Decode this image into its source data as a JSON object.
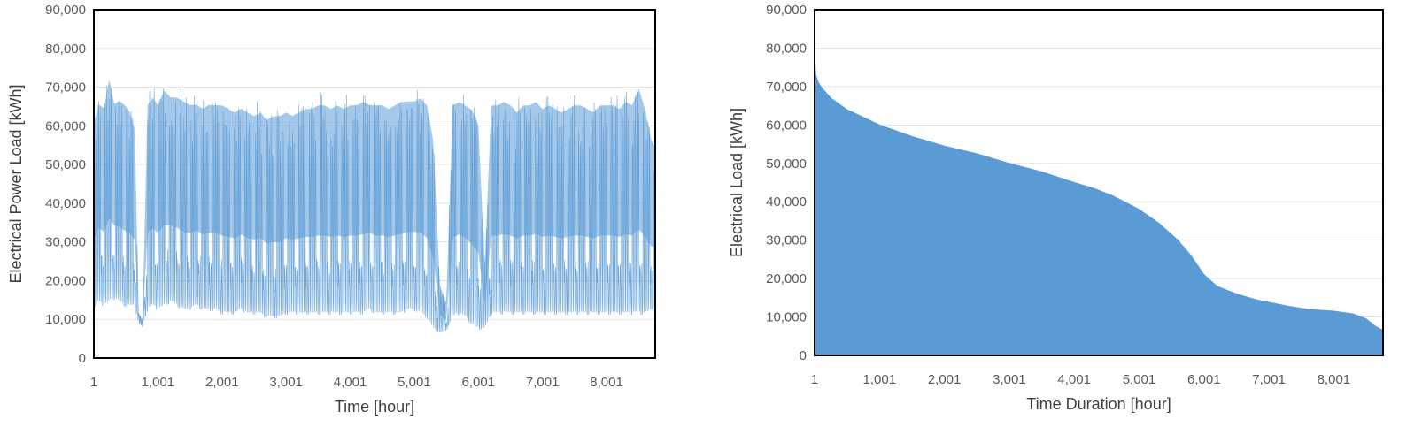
{
  "colors": {
    "series": "#5b9bd5",
    "grid": "#e3e3e3",
    "frame": "#000000",
    "text": "#595959"
  },
  "chart_data": [
    {
      "type": "line",
      "title": "",
      "xlabel": "Time [hour]",
      "ylabel": "Electrical Power Load [kWh]",
      "xlim": [
        1,
        8760
      ],
      "ylim": [
        0,
        90000
      ],
      "grid": true,
      "legend": "none",
      "x_ticks": [
        "1",
        "1,001",
        "2,001",
        "3,001",
        "4,001",
        "5,001",
        "6,001",
        "7,001",
        "8,001"
      ],
      "y_ticks": [
        "0",
        "10,000",
        "20,000",
        "30,000",
        "40,000",
        "50,000",
        "60,000",
        "70,000",
        "80,000",
        "90,000"
      ],
      "series": [
        {
          "values_note_x": "hour",
          "x": [
            1,
            80,
            160,
            240,
            320,
            400,
            480,
            560,
            640,
            700,
            760,
            840,
            920,
            1000,
            1100,
            1200,
            1300,
            1400,
            1500,
            1600,
            1700,
            1800,
            1900,
            2000,
            2100,
            2200,
            2300,
            2400,
            2500,
            2600,
            2700,
            2800,
            2900,
            3000,
            3100,
            3200,
            3300,
            3400,
            3500,
            3600,
            3700,
            3800,
            3900,
            4000,
            4100,
            4200,
            4300,
            4400,
            4500,
            4600,
            4700,
            4800,
            4900,
            5000,
            5100,
            5200,
            5300,
            5400,
            5500,
            5600,
            5700,
            5800,
            5900,
            6000,
            6100,
            6200,
            6300,
            6400,
            6500,
            6600,
            6700,
            6800,
            6900,
            7000,
            7100,
            7200,
            7300,
            7400,
            7500,
            7600,
            7700,
            7800,
            7900,
            8000,
            8100,
            8200,
            8300,
            8400,
            8500,
            8600,
            8700,
            8760
          ],
          "max": [
            65000,
            70000,
            69000,
            77000,
            70000,
            71000,
            70000,
            68000,
            63000,
            12000,
            10000,
            70000,
            72000,
            70000,
            74000,
            72000,
            72000,
            71000,
            70000,
            70000,
            69000,
            70000,
            70000,
            70000,
            69000,
            68000,
            69000,
            68000,
            67000,
            68000,
            66000,
            67000,
            67000,
            68000,
            67000,
            68000,
            69000,
            69000,
            70000,
            70000,
            69000,
            70000,
            69000,
            70000,
            70000,
            71000,
            70000,
            70000,
            70000,
            69000,
            70000,
            71000,
            71000,
            71000,
            72000,
            70000,
            60000,
            20000,
            15000,
            70000,
            71000,
            70000,
            69000,
            65000,
            25000,
            70000,
            70000,
            71000,
            70000,
            68000,
            70000,
            70000,
            71000,
            69000,
            70000,
            69000,
            68000,
            69000,
            70000,
            70000,
            69000,
            68000,
            70000,
            70000,
            70000,
            69000,
            71000,
            70000,
            75000,
            69000,
            60000,
            58000
          ],
          "min": [
            12000,
            14000,
            13000,
            14000,
            15000,
            14000,
            13000,
            13000,
            13000,
            9000,
            8000,
            12000,
            13000,
            12000,
            13000,
            14000,
            13000,
            12000,
            12000,
            13000,
            12000,
            12000,
            12000,
            11000,
            11000,
            11000,
            12000,
            11000,
            11000,
            11000,
            10000,
            10000,
            10000,
            11000,
            11000,
            11000,
            11000,
            11000,
            11000,
            11000,
            11000,
            11000,
            11000,
            11000,
            11000,
            11000,
            12000,
            11000,
            11000,
            11000,
            11000,
            11000,
            12000,
            12000,
            11000,
            10000,
            7000,
            6500,
            7000,
            10000,
            11000,
            10000,
            8000,
            7000,
            7500,
            11000,
            11000,
            11000,
            11000,
            11000,
            11000,
            11000,
            11000,
            11000,
            11000,
            11000,
            11000,
            11000,
            11000,
            11000,
            11000,
            11000,
            11000,
            11000,
            11000,
            11000,
            11000,
            11000,
            11000,
            11000,
            12000,
            13000
          ]
        }
      ]
    },
    {
      "type": "area",
      "title": "",
      "xlabel": "Time Duration [hour]",
      "ylabel": "Electrical Load [kWh]",
      "xlim": [
        1,
        8760
      ],
      "ylim": [
        0,
        90000
      ],
      "grid": true,
      "legend": "none",
      "x_ticks": [
        "1",
        "1,001",
        "2,001",
        "3,001",
        "4,001",
        "5,001",
        "6,001",
        "7,001",
        "8,001"
      ],
      "y_ticks": [
        "0",
        "10,000",
        "20,000",
        "30,000",
        "40,000",
        "50,000",
        "60,000",
        "70,000",
        "80,000",
        "90,000"
      ],
      "series": [
        {
          "x": [
            1,
            20,
            60,
            120,
            250,
            500,
            750,
            1001,
            1500,
            2001,
            2500,
            3001,
            3500,
            4001,
            4300,
            4600,
            5001,
            5300,
            5600,
            5800,
            6001,
            6200,
            6500,
            6800,
            7001,
            7300,
            7600,
            8001,
            8300,
            8500,
            8650,
            8760
          ],
          "y": [
            78000,
            73000,
            71000,
            69500,
            67000,
            64000,
            62000,
            60000,
            57000,
            54500,
            52500,
            50000,
            47800,
            45000,
            43500,
            41500,
            38000,
            34500,
            30000,
            26000,
            21000,
            18000,
            16000,
            14500,
            13800,
            12800,
            12000,
            11500,
            10800,
            9500,
            7500,
            6500
          ]
        }
      ]
    }
  ]
}
